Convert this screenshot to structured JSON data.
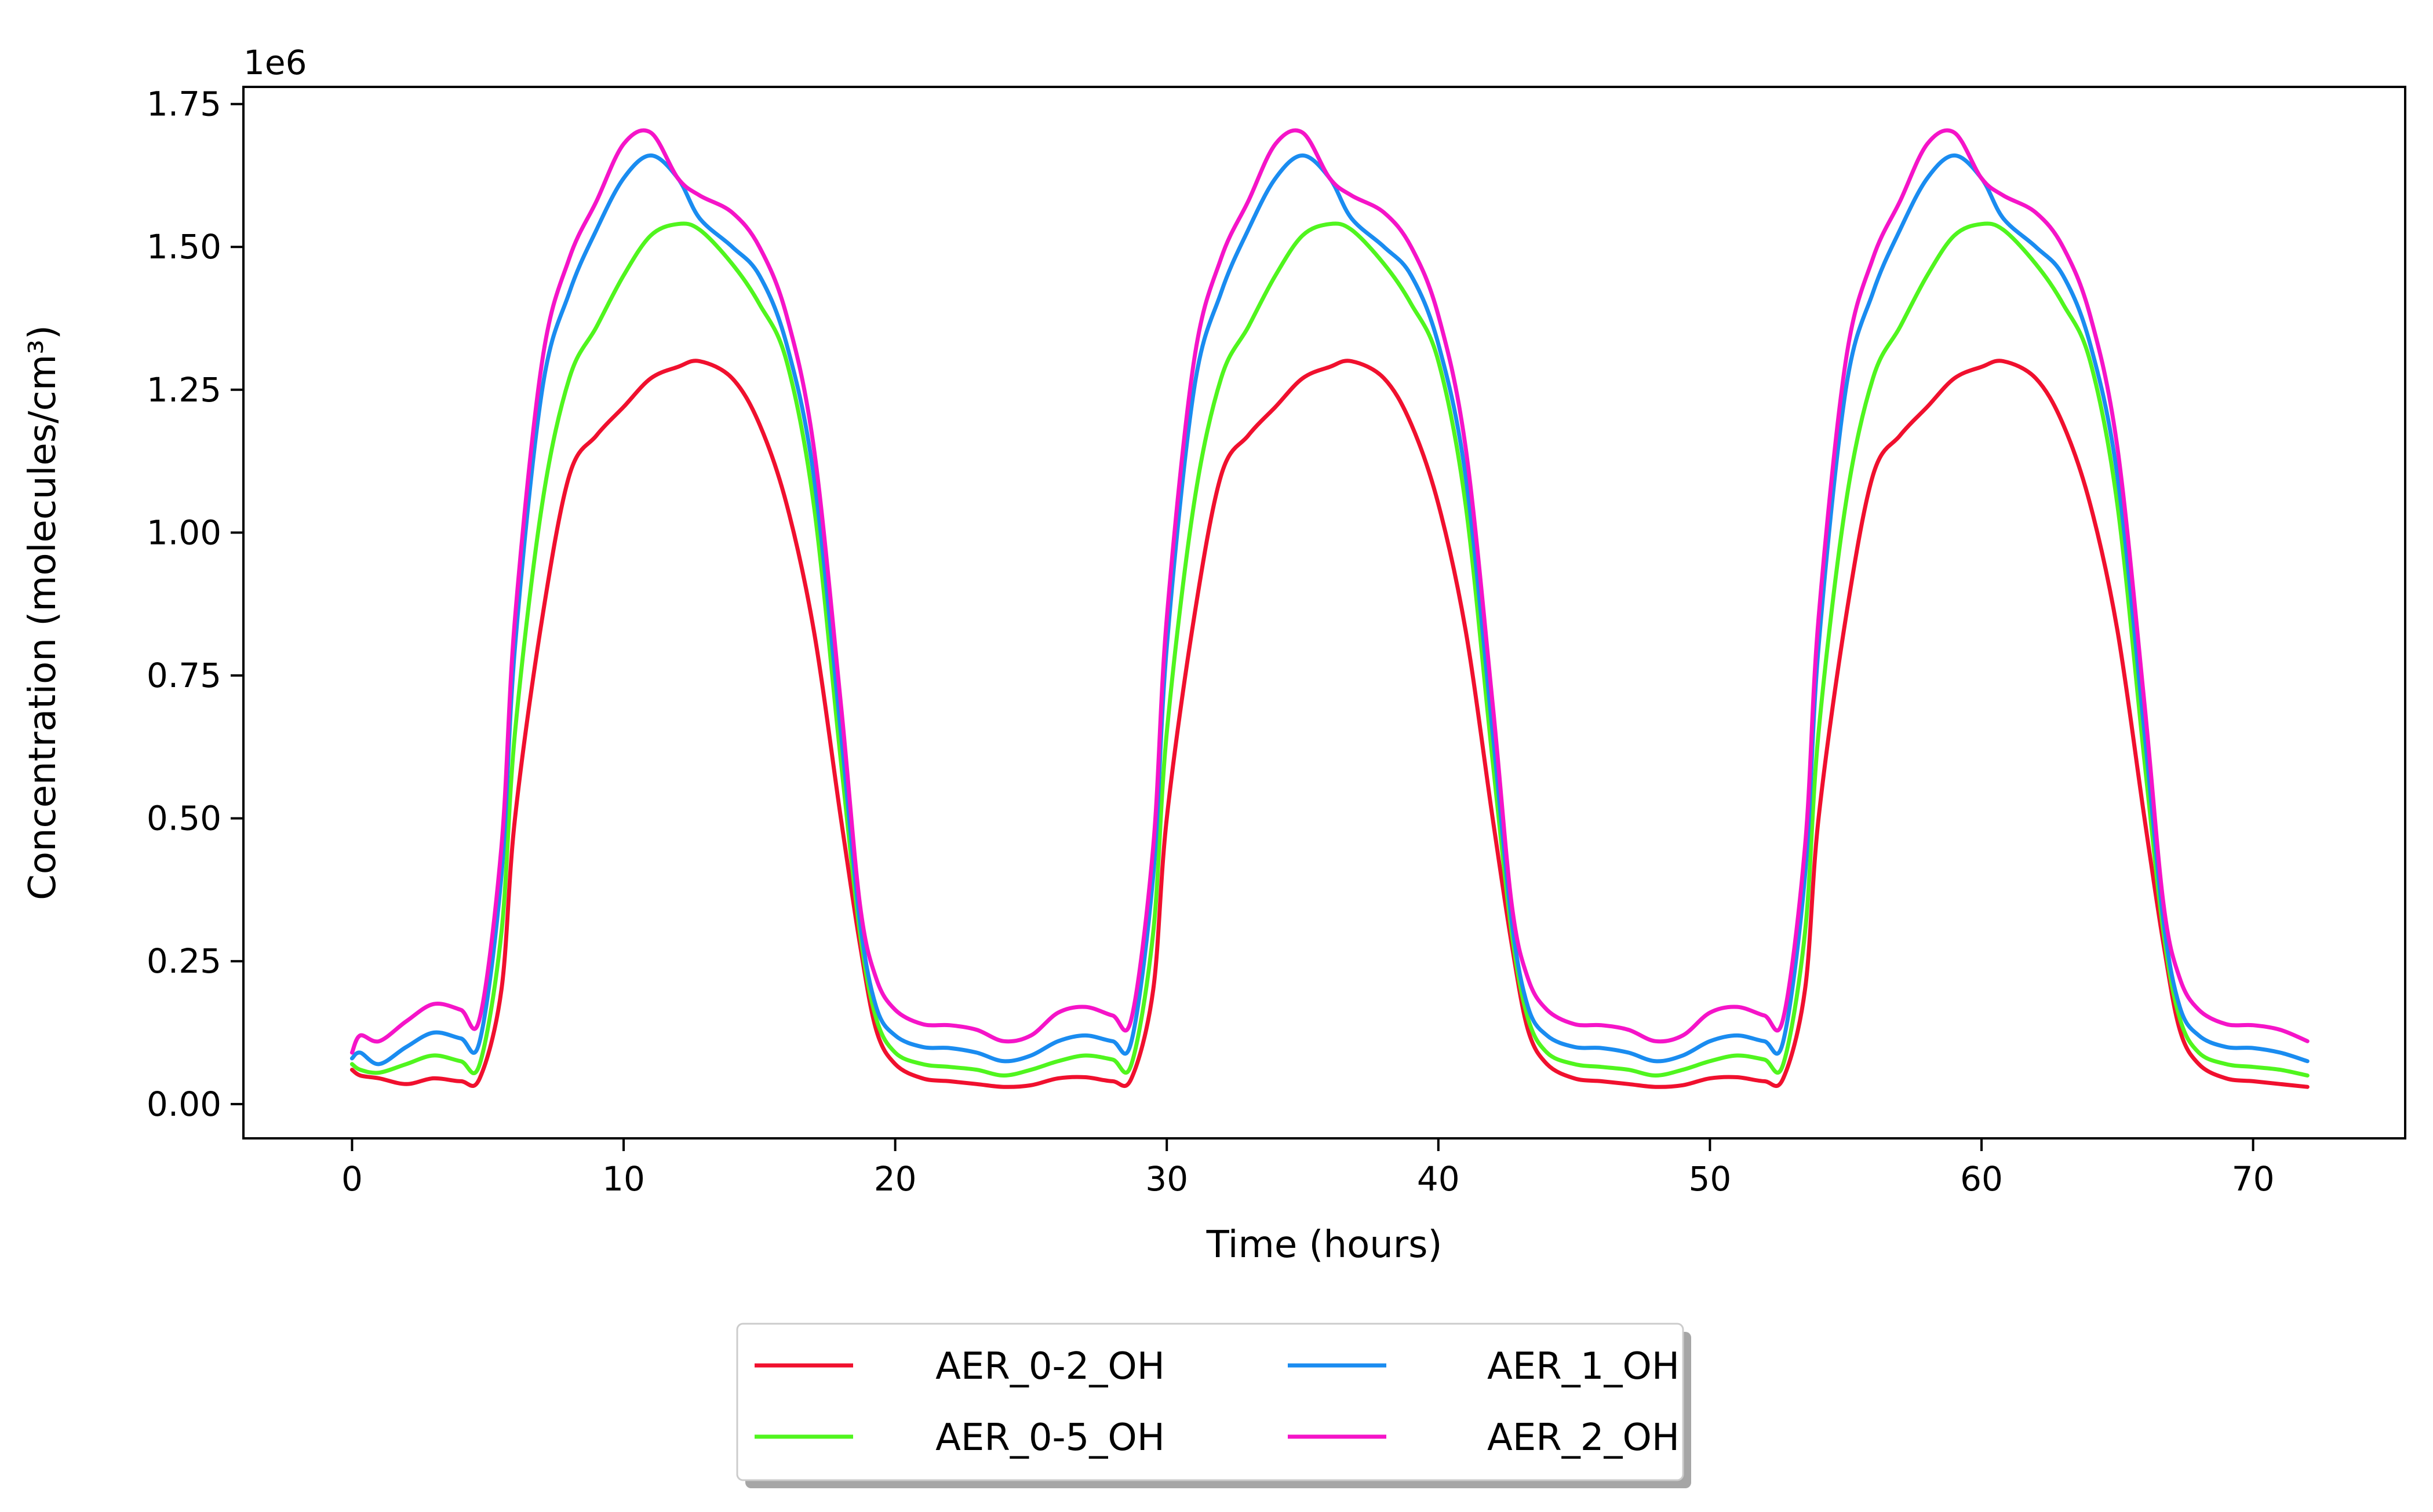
{
  "chart_data": {
    "type": "line",
    "title": "",
    "xlabel": "Time (hours)",
    "ylabel": "Concentration (molecules/cm³)",
    "y_offset_label": "1e6",
    "xlim": [
      -4,
      75.6
    ],
    "ylim": [
      -0.06,
      1.78
    ],
    "x_ticks": [
      0,
      10,
      20,
      30,
      40,
      50,
      60,
      70
    ],
    "x_tick_labels": [
      "0",
      "10",
      "20",
      "30",
      "40",
      "50",
      "60",
      "70"
    ],
    "y_ticks": [
      0,
      0.25,
      0.5,
      0.75,
      1.0,
      1.25,
      1.5,
      1.75
    ],
    "y_tick_labels": [
      "0.00",
      "0.25",
      "0.50",
      "0.75",
      "1.00",
      "1.25",
      "1.50",
      "1.75"
    ],
    "grid": false,
    "legend": {
      "placement": "bottom-center, below axes",
      "columns": 2
    },
    "x": [
      0,
      0.3,
      1,
      2,
      3,
      4,
      4.7,
      5.5,
      6,
      7,
      8,
      9,
      10,
      11,
      12,
      12.8,
      14,
      15,
      16,
      17,
      18,
      18.7,
      19.3,
      20,
      21,
      22,
      23,
      24,
      25,
      26,
      27,
      28,
      28.7,
      29.5,
      30,
      31,
      32,
      33,
      34,
      35,
      36,
      36.8,
      38,
      39,
      40,
      41,
      42,
      42.7,
      43.3,
      44,
      45,
      46,
      47,
      48,
      49,
      50,
      51,
      52,
      52.7,
      53.5,
      54,
      55,
      56,
      57,
      58,
      59,
      60,
      60.8,
      62,
      63,
      64,
      65,
      66,
      66.7,
      67.3,
      68,
      69,
      70,
      71,
      72
    ],
    "series": [
      {
        "name": "AER_0-2_OH",
        "color": "#f0102e",
        "values": [
          0.06,
          0.05,
          0.045,
          0.035,
          0.045,
          0.04,
          0.045,
          0.2,
          0.5,
          0.85,
          1.1,
          1.17,
          1.22,
          1.27,
          1.29,
          1.3,
          1.27,
          1.19,
          1.05,
          0.83,
          0.5,
          0.28,
          0.13,
          0.07,
          0.045,
          0.04,
          0.035,
          0.03,
          0.033,
          0.045,
          0.047,
          0.04,
          0.045,
          0.2,
          0.5,
          0.85,
          1.1,
          1.17,
          1.22,
          1.27,
          1.29,
          1.3,
          1.27,
          1.19,
          1.05,
          0.83,
          0.5,
          0.28,
          0.13,
          0.07,
          0.045,
          0.04,
          0.035,
          0.03,
          0.033,
          0.045,
          0.047,
          0.04,
          0.045,
          0.2,
          0.5,
          0.85,
          1.1,
          1.17,
          1.22,
          1.27,
          1.29,
          1.3,
          1.27,
          1.19,
          1.05,
          0.83,
          0.5,
          0.28,
          0.13,
          0.07,
          0.045,
          0.04,
          0.035,
          0.03
        ]
      },
      {
        "name": "AER_0-5_OH",
        "color": "#50f51e",
        "values": [
          0.07,
          0.06,
          0.055,
          0.07,
          0.085,
          0.075,
          0.07,
          0.3,
          0.65,
          1.05,
          1.27,
          1.36,
          1.45,
          1.52,
          1.54,
          1.53,
          1.47,
          1.4,
          1.3,
          1.05,
          0.6,
          0.3,
          0.15,
          0.09,
          0.07,
          0.065,
          0.06,
          0.05,
          0.06,
          0.075,
          0.085,
          0.078,
          0.07,
          0.3,
          0.65,
          1.05,
          1.27,
          1.36,
          1.45,
          1.52,
          1.54,
          1.53,
          1.47,
          1.4,
          1.3,
          1.05,
          0.6,
          0.3,
          0.15,
          0.09,
          0.07,
          0.065,
          0.06,
          0.05,
          0.06,
          0.075,
          0.085,
          0.078,
          0.07,
          0.3,
          0.65,
          1.05,
          1.27,
          1.36,
          1.45,
          1.52,
          1.54,
          1.53,
          1.47,
          1.4,
          1.3,
          1.05,
          0.6,
          0.3,
          0.15,
          0.09,
          0.07,
          0.065,
          0.06,
          0.05
        ]
      },
      {
        "name": "AER_1_OH",
        "color": "#1a8cf0",
        "values": [
          0.08,
          0.09,
          0.07,
          0.1,
          0.125,
          0.115,
          0.11,
          0.4,
          0.8,
          1.25,
          1.42,
          1.53,
          1.62,
          1.66,
          1.62,
          1.55,
          1.5,
          1.45,
          1.33,
          1.1,
          0.65,
          0.32,
          0.17,
          0.12,
          0.1,
          0.098,
          0.09,
          0.075,
          0.085,
          0.11,
          0.12,
          0.11,
          0.11,
          0.4,
          0.8,
          1.25,
          1.42,
          1.53,
          1.62,
          1.66,
          1.62,
          1.55,
          1.5,
          1.45,
          1.33,
          1.1,
          0.65,
          0.32,
          0.17,
          0.12,
          0.1,
          0.098,
          0.09,
          0.075,
          0.085,
          0.11,
          0.12,
          0.11,
          0.11,
          0.4,
          0.8,
          1.25,
          1.42,
          1.53,
          1.62,
          1.66,
          1.62,
          1.55,
          1.5,
          1.45,
          1.33,
          1.1,
          0.65,
          0.32,
          0.17,
          0.12,
          0.1,
          0.098,
          0.09,
          0.075
        ]
      },
      {
        "name": "AER_2_OH",
        "color": "#f514c8",
        "values": [
          0.09,
          0.12,
          0.11,
          0.145,
          0.175,
          0.165,
          0.15,
          0.45,
          0.85,
          1.3,
          1.48,
          1.58,
          1.68,
          1.7,
          1.62,
          1.59,
          1.56,
          1.5,
          1.38,
          1.15,
          0.7,
          0.35,
          0.22,
          0.165,
          0.14,
          0.138,
          0.13,
          0.11,
          0.12,
          0.16,
          0.17,
          0.155,
          0.15,
          0.45,
          0.85,
          1.3,
          1.48,
          1.58,
          1.68,
          1.7,
          1.62,
          1.59,
          1.56,
          1.5,
          1.38,
          1.15,
          0.7,
          0.35,
          0.22,
          0.165,
          0.14,
          0.138,
          0.13,
          0.11,
          0.12,
          0.16,
          0.17,
          0.155,
          0.15,
          0.45,
          0.85,
          1.3,
          1.48,
          1.58,
          1.68,
          1.7,
          1.62,
          1.59,
          1.56,
          1.5,
          1.38,
          1.15,
          0.7,
          0.35,
          0.22,
          0.165,
          0.14,
          0.138,
          0.13,
          0.11
        ]
      }
    ]
  }
}
